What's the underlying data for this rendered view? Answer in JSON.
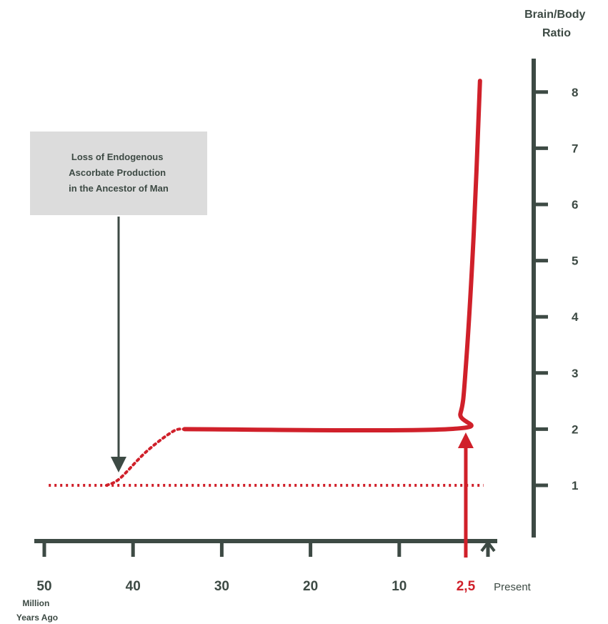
{
  "chart_data": {
    "type": "line",
    "title": "",
    "xlabel": "Million Years Ago",
    "ylabel": "Brain/Body Ratio",
    "y_axis_title_line1": "Brain/Body",
    "y_axis_title_line2": "Ratio",
    "x_axis_unit_line1": "Million",
    "x_axis_unit_line2": "Years Ago",
    "x_ticks": [
      {
        "value": 50,
        "label": "50"
      },
      {
        "value": 40,
        "label": "40"
      },
      {
        "value": 30,
        "label": "30"
      },
      {
        "value": 20,
        "label": "20"
      },
      {
        "value": 10,
        "label": "10"
      },
      {
        "value": 2.5,
        "label": "2,5",
        "highlight": true
      },
      {
        "value": 0,
        "label": "Present"
      }
    ],
    "y_ticks": [
      1,
      2,
      3,
      4,
      5,
      6,
      7,
      8
    ],
    "ylim": [
      0,
      8.5
    ],
    "xlim": [
      50.5,
      0
    ],
    "grid": false,
    "baseline": {
      "y": 1,
      "x_from": 49.5,
      "x_to": 0.5,
      "style": "dotted"
    },
    "series": [
      {
        "style": "dotted",
        "points": [
          [
            43,
            1.0
          ],
          [
            41.5,
            1.12
          ],
          [
            38.5,
            1.6
          ],
          [
            35.5,
            1.96
          ],
          [
            34.2,
            2.0
          ]
        ]
      },
      {
        "style": "solid",
        "points": [
          [
            34.2,
            2.0
          ],
          [
            4.5,
            2.0
          ],
          [
            3.1,
            2.28
          ],
          [
            2.5,
            3.1
          ],
          [
            1.6,
            5.5
          ],
          [
            0.9,
            8.2
          ]
        ]
      }
    ],
    "annotations": [
      {
        "text_lines": [
          "Loss of Endogenous",
          "Ascorbate Production",
          "in the Ancestor of Man"
        ],
        "arrow_to_x": 42,
        "arrow_to_y": 1.12
      },
      {
        "marker_x": 2.5,
        "arrow_to_y": 2,
        "color": "#d0202a"
      }
    ],
    "colors": {
      "line": "#d0202a",
      "axis": "#3d4a44",
      "box": "#dcdcdc",
      "text": "#3d4a44"
    }
  }
}
